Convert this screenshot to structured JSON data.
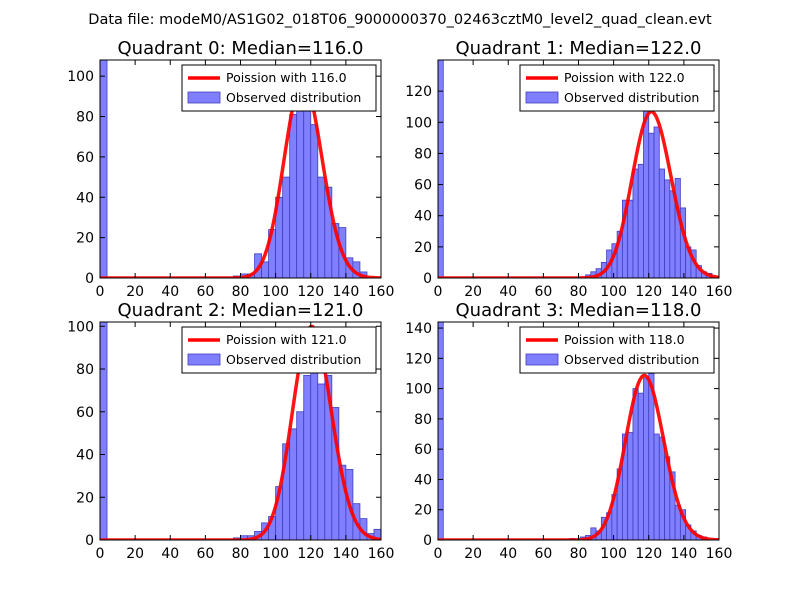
{
  "figure": {
    "suptitle": "Data file: modeM0/AS1G02_018T06_9000000370_02463cztM0_level2_quad_clean.evt"
  },
  "colors": {
    "bars": "#7f7fff",
    "bar_edge": "#3f3fbf",
    "poisson": "#ff0000",
    "axes": "#000000"
  },
  "chart_data": [
    {
      "type": "bar",
      "title": "Quadrant 0: Median=116.0",
      "median": 116.0,
      "legend": {
        "line_label": "Poission with 116.0",
        "bar_label": "Observed distribution",
        "loc": "upper-right"
      },
      "xlim": [
        0,
        160
      ],
      "ylim": [
        0,
        108
      ],
      "xticks": [
        0,
        20,
        40,
        60,
        80,
        100,
        120,
        140,
        160
      ],
      "yticks": [
        0,
        20,
        40,
        60,
        80,
        100
      ],
      "bin_width": 4,
      "bins": [
        {
          "x": 0,
          "y": 108
        },
        {
          "x": 76,
          "y": 1
        },
        {
          "x": 80,
          "y": 2
        },
        {
          "x": 84,
          "y": 2
        },
        {
          "x": 88,
          "y": 12
        },
        {
          "x": 92,
          "y": 8
        },
        {
          "x": 96,
          "y": 24
        },
        {
          "x": 100,
          "y": 40
        },
        {
          "x": 104,
          "y": 50
        },
        {
          "x": 108,
          "y": 81
        },
        {
          "x": 112,
          "y": 92
        },
        {
          "x": 116,
          "y": 103
        },
        {
          "x": 120,
          "y": 76
        },
        {
          "x": 124,
          "y": 50
        },
        {
          "x": 128,
          "y": 45
        },
        {
          "x": 132,
          "y": 27
        },
        {
          "x": 136,
          "y": 25
        },
        {
          "x": 140,
          "y": 10
        },
        {
          "x": 144,
          "y": 8
        },
        {
          "x": 148,
          "y": 3
        }
      ]
    },
    {
      "type": "bar",
      "title": "Quadrant 1: Median=122.0",
      "median": 122.0,
      "legend": {
        "line_label": "Poission with 122.0",
        "bar_label": "Observed distribution",
        "loc": "upper-right"
      },
      "xlim": [
        0,
        160
      ],
      "ylim": [
        0,
        140
      ],
      "xticks": [
        0,
        20,
        40,
        60,
        80,
        100,
        120,
        140,
        160
      ],
      "yticks": [
        0,
        20,
        40,
        60,
        80,
        100,
        120
      ],
      "bin_width": 3,
      "bins": [
        {
          "x": 0,
          "y": 140
        },
        {
          "x": 84,
          "y": 2
        },
        {
          "x": 87,
          "y": 4
        },
        {
          "x": 90,
          "y": 6
        },
        {
          "x": 93,
          "y": 10
        },
        {
          "x": 96,
          "y": 18
        },
        {
          "x": 99,
          "y": 22
        },
        {
          "x": 102,
          "y": 30
        },
        {
          "x": 105,
          "y": 50
        },
        {
          "x": 108,
          "y": 50
        },
        {
          "x": 111,
          "y": 70
        },
        {
          "x": 114,
          "y": 73
        },
        {
          "x": 117,
          "y": 110
        },
        {
          "x": 120,
          "y": 93
        },
        {
          "x": 123,
          "y": 97
        },
        {
          "x": 126,
          "y": 70
        },
        {
          "x": 129,
          "y": 63
        },
        {
          "x": 132,
          "y": 56
        },
        {
          "x": 135,
          "y": 64
        },
        {
          "x": 138,
          "y": 45
        },
        {
          "x": 141,
          "y": 20
        },
        {
          "x": 144,
          "y": 18
        },
        {
          "x": 147,
          "y": 8
        },
        {
          "x": 150,
          "y": 4
        },
        {
          "x": 153,
          "y": 3
        }
      ]
    },
    {
      "type": "bar",
      "title": "Quadrant 2: Median=121.0",
      "median": 121.0,
      "legend": {
        "line_label": "Poission with 121.0",
        "bar_label": "Observed distribution",
        "loc": "upper-right"
      },
      "xlim": [
        0,
        160
      ],
      "ylim": [
        0,
        102
      ],
      "xticks": [
        0,
        20,
        40,
        60,
        80,
        100,
        120,
        140,
        160
      ],
      "yticks": [
        0,
        20,
        40,
        60,
        80,
        100
      ],
      "bin_width": 4,
      "bins": [
        {
          "x": 0,
          "y": 102
        },
        {
          "x": 76,
          "y": 1
        },
        {
          "x": 80,
          "y": 2
        },
        {
          "x": 84,
          "y": 2
        },
        {
          "x": 88,
          "y": 4
        },
        {
          "x": 92,
          "y": 8
        },
        {
          "x": 96,
          "y": 11
        },
        {
          "x": 100,
          "y": 25
        },
        {
          "x": 104,
          "y": 45
        },
        {
          "x": 108,
          "y": 52
        },
        {
          "x": 112,
          "y": 60
        },
        {
          "x": 116,
          "y": 77
        },
        {
          "x": 120,
          "y": 87
        },
        {
          "x": 124,
          "y": 73
        },
        {
          "x": 128,
          "y": 77
        },
        {
          "x": 132,
          "y": 62
        },
        {
          "x": 136,
          "y": 35
        },
        {
          "x": 140,
          "y": 33
        },
        {
          "x": 144,
          "y": 17
        },
        {
          "x": 148,
          "y": 10
        },
        {
          "x": 152,
          "y": 3
        },
        {
          "x": 156,
          "y": 5
        }
      ]
    },
    {
      "type": "bar",
      "title": "Quadrant 3: Median=118.0",
      "median": 118.0,
      "legend": {
        "line_label": "Poission with 118.0",
        "bar_label": "Observed distribution",
        "loc": "upper-right"
      },
      "xlim": [
        0,
        160
      ],
      "ylim": [
        0,
        144
      ],
      "xticks": [
        0,
        20,
        40,
        60,
        80,
        100,
        120,
        140,
        160
      ],
      "yticks": [
        0,
        20,
        40,
        60,
        80,
        100,
        120,
        140
      ],
      "bin_width": 3,
      "bins": [
        {
          "x": 0,
          "y": 144
        },
        {
          "x": 75,
          "y": 1
        },
        {
          "x": 81,
          "y": 2
        },
        {
          "x": 84,
          "y": 3
        },
        {
          "x": 87,
          "y": 8
        },
        {
          "x": 90,
          "y": 6
        },
        {
          "x": 93,
          "y": 15
        },
        {
          "x": 96,
          "y": 18
        },
        {
          "x": 99,
          "y": 30
        },
        {
          "x": 102,
          "y": 47
        },
        {
          "x": 105,
          "y": 70
        },
        {
          "x": 108,
          "y": 71
        },
        {
          "x": 111,
          "y": 100
        },
        {
          "x": 114,
          "y": 97
        },
        {
          "x": 117,
          "y": 107
        },
        {
          "x": 120,
          "y": 110
        },
        {
          "x": 123,
          "y": 70
        },
        {
          "x": 126,
          "y": 68
        },
        {
          "x": 129,
          "y": 55
        },
        {
          "x": 132,
          "y": 45
        },
        {
          "x": 135,
          "y": 23
        },
        {
          "x": 138,
          "y": 20
        },
        {
          "x": 141,
          "y": 10
        },
        {
          "x": 144,
          "y": 6
        },
        {
          "x": 147,
          "y": 3
        },
        {
          "x": 150,
          "y": 2
        }
      ]
    }
  ]
}
